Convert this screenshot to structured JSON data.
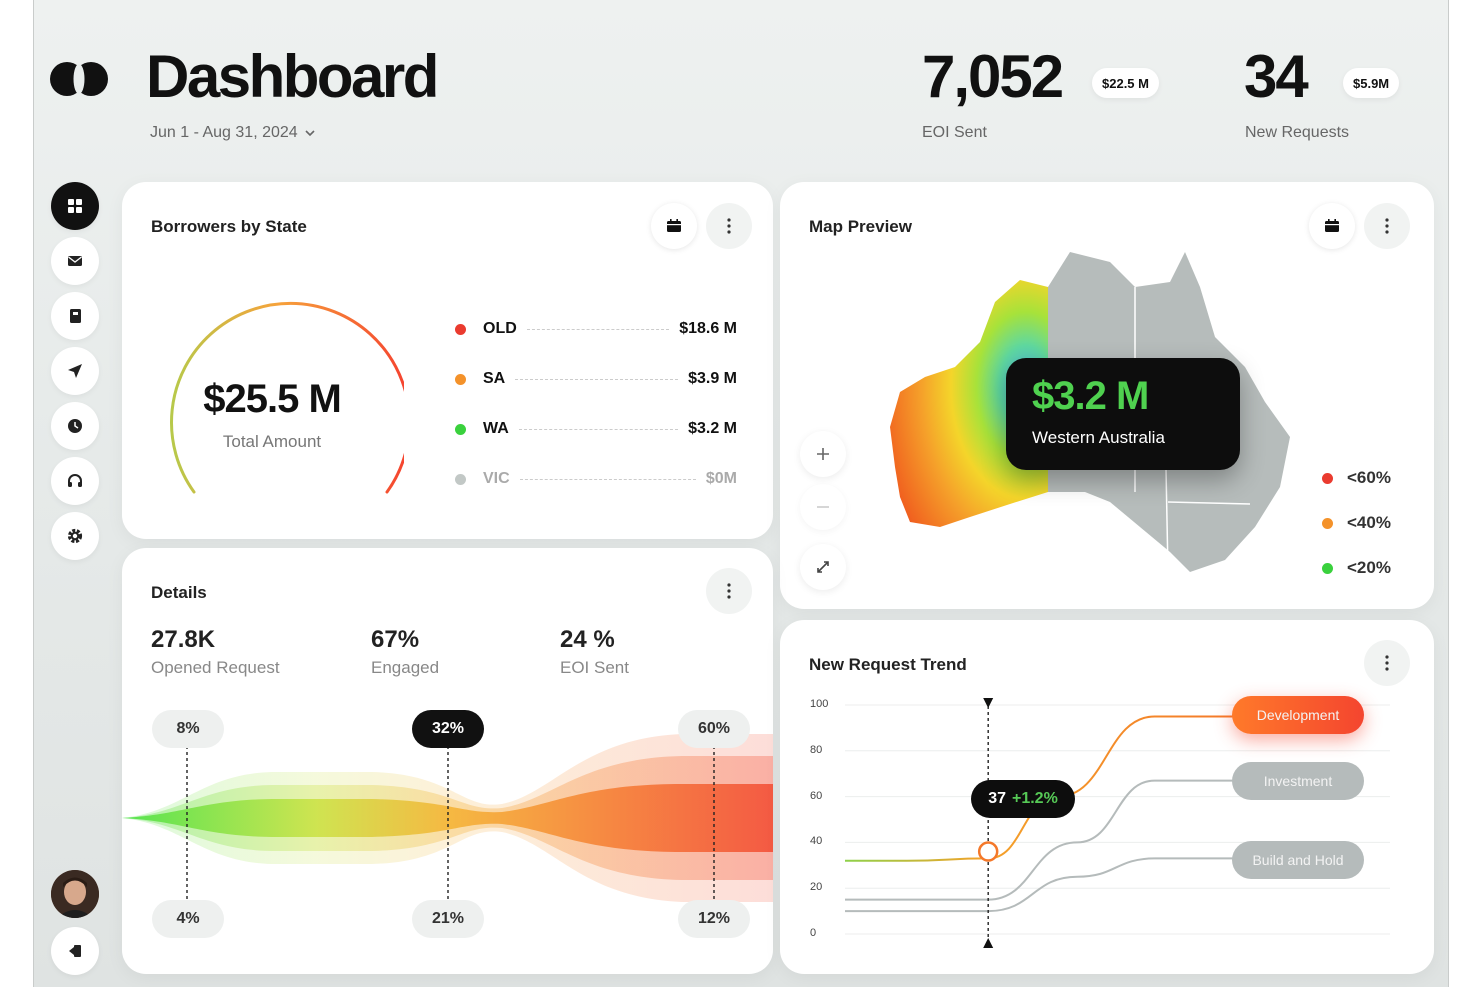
{
  "header": {
    "title": "Dashboard",
    "date_range": "Jun 1 - Aug 31, 2024",
    "kpis": [
      {
        "value": "7,052",
        "badge": "$22.5 M",
        "label": "EOI Sent"
      },
      {
        "value": "34",
        "badge": "$5.9M",
        "label": "New Requests"
      }
    ]
  },
  "sidebar": {
    "items": [
      {
        "icon": "dashboard-grid-icon",
        "active": true
      },
      {
        "icon": "mail-icon"
      },
      {
        "icon": "book-icon"
      },
      {
        "icon": "send-icon"
      },
      {
        "icon": "clock-icon"
      },
      {
        "icon": "headset-icon"
      },
      {
        "icon": "gear-icon"
      }
    ],
    "bottom": {
      "avatar": "user-avatar",
      "logout_icon": "logout-icon"
    }
  },
  "borrowers": {
    "title": "Borrowers by State",
    "total_value": "$25.5 M",
    "total_label": "Total Amount",
    "gauge_colors": [
      "#b7c94a",
      "#f6a23b",
      "#f5412f"
    ],
    "states": [
      {
        "name": "OLD",
        "value": "$18.6 M",
        "color": "#ea3b2f",
        "muted": false
      },
      {
        "name": "SA",
        "value": "$3.9 M",
        "color": "#f4922a",
        "muted": false
      },
      {
        "name": "WA",
        "value": "$3.2 M",
        "color": "#3ad13d",
        "muted": false
      },
      {
        "name": "VIC",
        "value": "$0M",
        "color": "#c2c8c6",
        "muted": true
      }
    ]
  },
  "map": {
    "title": "Map Preview",
    "tooltip_value": "$3.2 M",
    "tooltip_label": "Western Australia",
    "controls": [
      "zoom-in",
      "zoom-out",
      "expand"
    ],
    "legend": [
      {
        "label": "<60%",
        "color": "#ea3b2f"
      },
      {
        "label": "<40%",
        "color": "#f4922a"
      },
      {
        "label": "<20%",
        "color": "#3ad13d"
      }
    ]
  },
  "details": {
    "title": "Details",
    "stats": [
      {
        "value": "27.8K",
        "label": "Opened Request"
      },
      {
        "value": "67%",
        "label": "Engaged"
      },
      {
        "value": "24 %",
        "label": "EOI Sent"
      }
    ],
    "funnel_top": [
      "8%",
      "32%",
      "60%"
    ],
    "funnel_bottom": [
      "4%",
      "21%",
      "12%"
    ]
  },
  "trend": {
    "title": "New Request Trend",
    "tooltip_value": "37",
    "tooltip_change": "+1.2%",
    "series_labels": [
      "Development",
      "Investment",
      "Build and Hold"
    ]
  },
  "chart_data": {
    "type": "line",
    "ylim": [
      0,
      100
    ],
    "yticks": [
      "100",
      "80",
      "60",
      "40",
      "20",
      "0"
    ],
    "series": [
      {
        "name": "Development",
        "color": "#f4782a",
        "points": [
          [
            0,
            32
          ],
          [
            0.16,
            32
          ],
          [
            0.37,
            33
          ],
          [
            0.55,
            60
          ],
          [
            0.8,
            95
          ],
          [
            1,
            95
          ]
        ]
      },
      {
        "name": "Investment",
        "color": "#b5bbbb",
        "points": [
          [
            0,
            15
          ],
          [
            0.37,
            15
          ],
          [
            0.6,
            40
          ],
          [
            0.8,
            67
          ],
          [
            1,
            67
          ]
        ]
      },
      {
        "name": "Build and Hold",
        "color": "#b5bbbb",
        "points": [
          [
            0,
            10
          ],
          [
            0.37,
            10
          ],
          [
            0.6,
            25
          ],
          [
            0.8,
            33
          ],
          [
            1,
            33
          ]
        ]
      }
    ],
    "marker": {
      "x": 0.37,
      "y": 36
    }
  }
}
